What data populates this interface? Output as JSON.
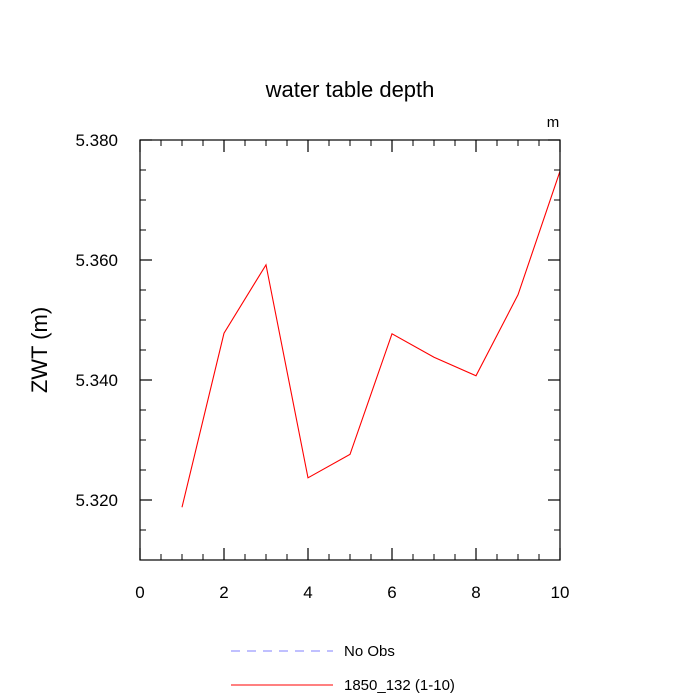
{
  "chart_data": {
    "type": "line",
    "title": "water table depth",
    "units_label": "m",
    "xlabel": "",
    "ylabel": "ZWT  (m)",
    "xlim": [
      0,
      10
    ],
    "ylim": [
      5.31,
      5.38
    ],
    "x_ticks": [
      0,
      2,
      4,
      6,
      8,
      10
    ],
    "y_ticks": [
      5.32,
      5.34,
      5.36,
      5.38
    ],
    "y_tick_labels": [
      "5.320",
      "5.340",
      "5.360",
      "5.380"
    ],
    "grid": false,
    "legend_position": "bottom",
    "series": [
      {
        "name": "1850_132 (1-10)",
        "color": "#ff0000",
        "dash": "solid",
        "x": [
          1,
          2,
          3,
          4,
          5,
          6,
          7,
          8,
          9,
          10
        ],
        "y": [
          5.3188,
          5.3478,
          5.3592,
          5.3237,
          5.3276,
          5.3477,
          5.3438,
          5.3407,
          5.3542,
          5.3748
        ]
      }
    ],
    "legend": [
      {
        "label": "No Obs",
        "color": "#8080ff",
        "dash": "dashed"
      },
      {
        "label": "1850_132 (1-10)",
        "color": "#ff0000",
        "dash": "solid"
      }
    ]
  }
}
